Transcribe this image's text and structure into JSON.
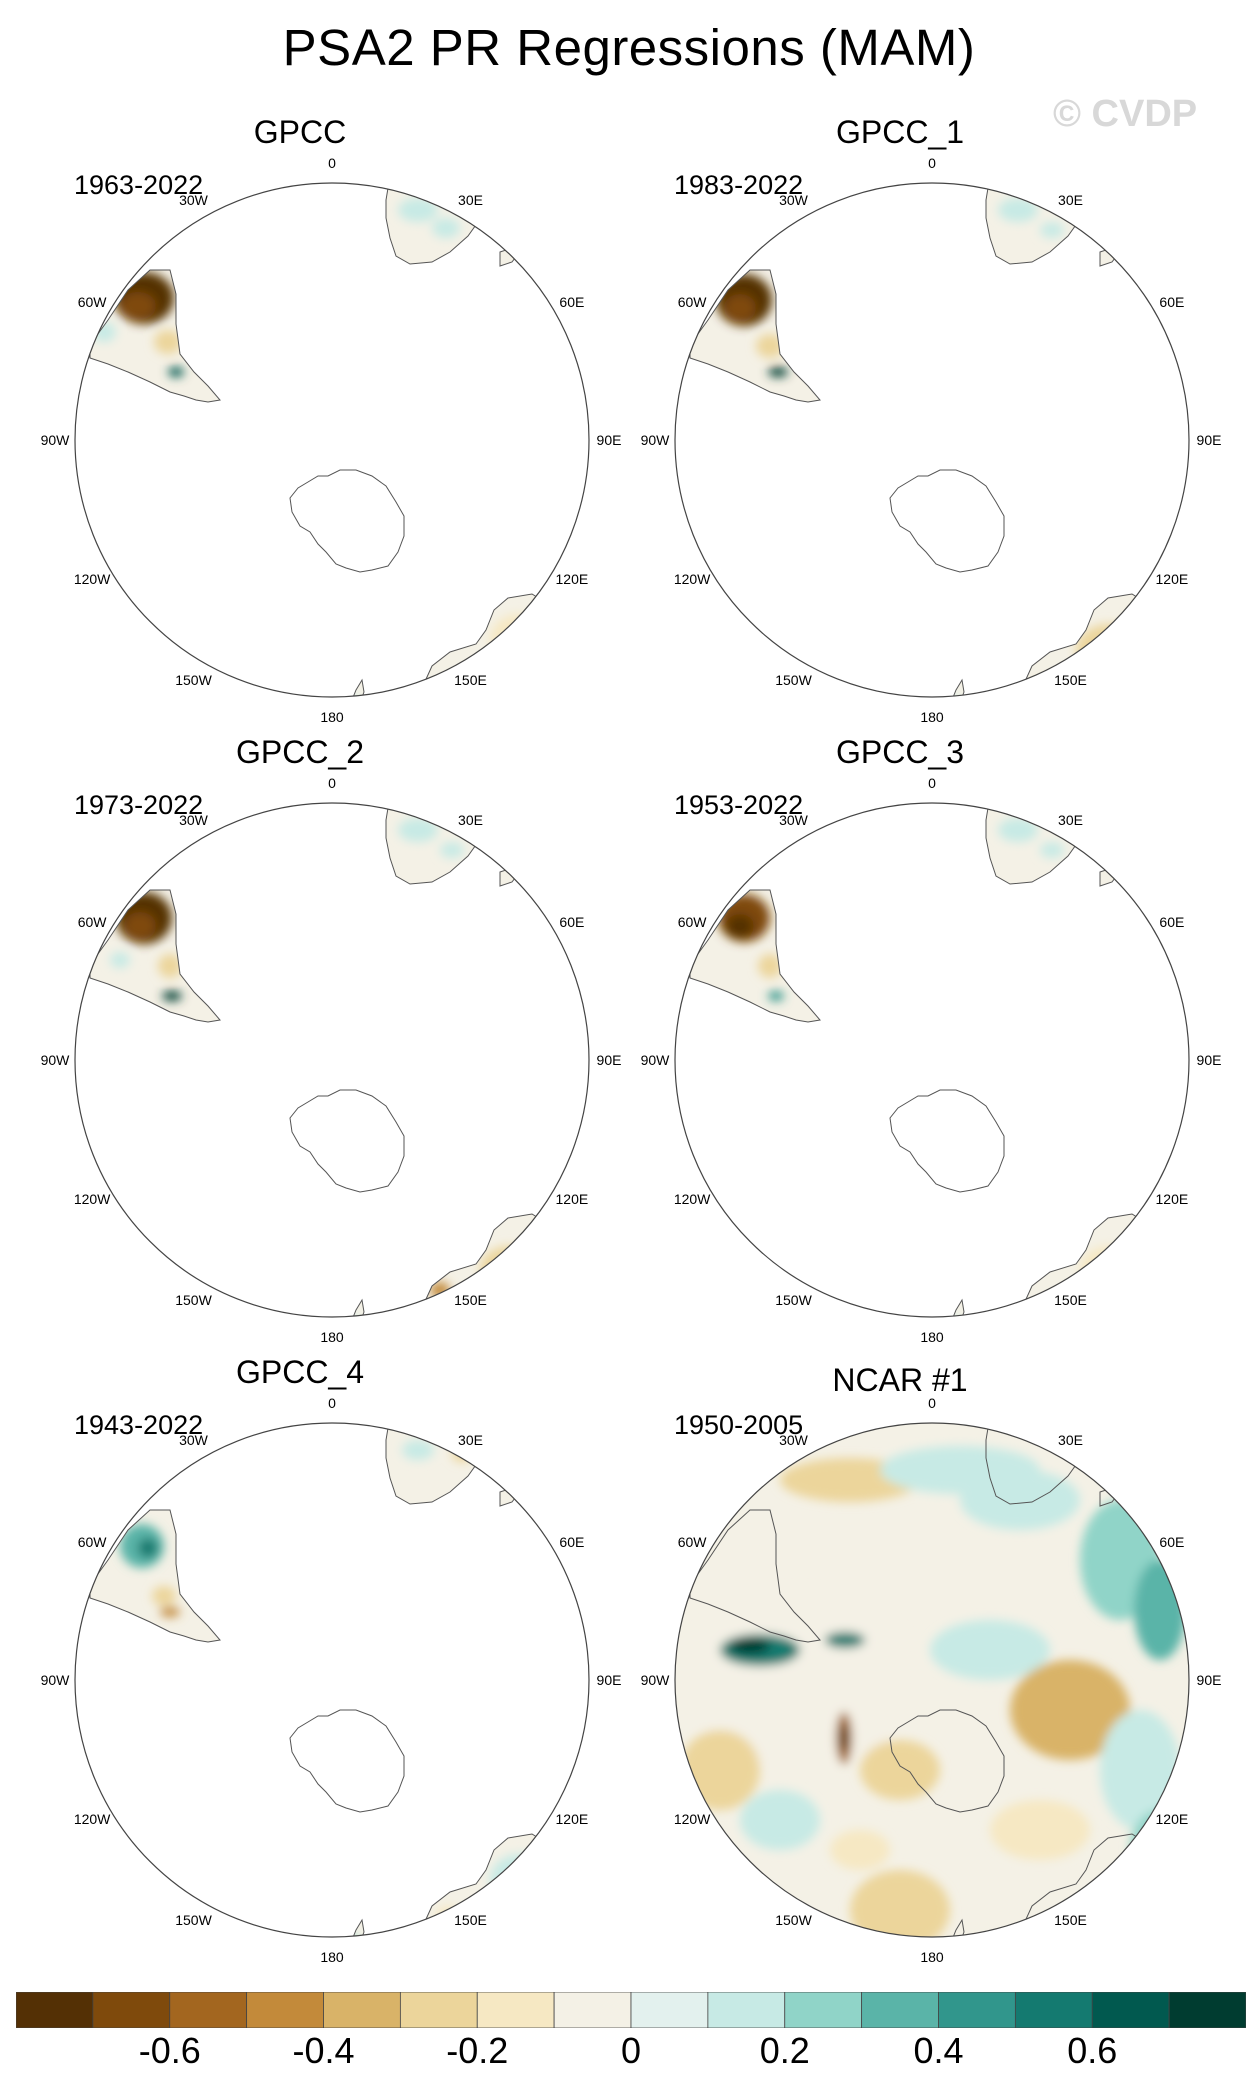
{
  "title": "PSA2 PR Regressions (MAM)",
  "watermark": "© CVDP",
  "panels": [
    {
      "name": "GPCC",
      "years": "1963-2022"
    },
    {
      "name": "GPCC_1",
      "years": "1983-2022"
    },
    {
      "name": "GPCC_2",
      "years": "1973-2022"
    },
    {
      "name": "GPCC_3",
      "years": "1953-2022"
    },
    {
      "name": "GPCC_4",
      "years": "1943-2022"
    },
    {
      "name": "NCAR #1",
      "years": "1950-2005"
    }
  ],
  "longitude_labels": [
    "0",
    "30E",
    "60E",
    "90E",
    "120E",
    "150E",
    "180",
    "150W",
    "120W",
    "90W",
    "60W",
    "30W"
  ],
  "colorbar": {
    "colors": [
      "#543005",
      "#7f4a0c",
      "#a3661f",
      "#c38a3a",
      "#d9b368",
      "#ecd59b",
      "#f6e8c3",
      "#f4f1e6",
      "#e3f1ee",
      "#c7eae5",
      "#90d4c8",
      "#5ab4a8",
      "#31968c",
      "#147a70",
      "#01594f",
      "#003c30"
    ],
    "tick_labels": [
      "-0.6",
      "-0.4",
      "-0.2",
      "0",
      "0.2",
      "0.4",
      "0.6"
    ],
    "tick_values": [
      -0.6,
      -0.4,
      -0.2,
      0,
      0.2,
      0.4,
      0.6
    ],
    "range": [
      -0.8,
      0.8
    ]
  }
}
